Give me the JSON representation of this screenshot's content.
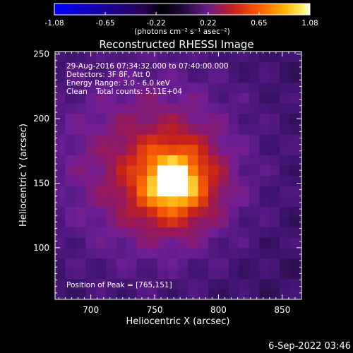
{
  "chart_data": {
    "type": "heatmap",
    "title": "Reconstructed RHESSI Image",
    "xlabel": "Heliocentric X (arcsec)",
    "ylabel": "Heliocentric Y (arcsec)",
    "xlim": [
      672,
      865
    ],
    "ylim": [
      60,
      252
    ],
    "x_ticks": [
      "700",
      "750",
      "800",
      "850"
    ],
    "y_ticks": [
      "100",
      "150",
      "200",
      "250"
    ],
    "colorbar": {
      "range": [
        -1.08,
        1.08
      ],
      "tick_labels": [
        "-1.08",
        "-0.65",
        "-0.22",
        "0.22",
        "0.65",
        "1.08"
      ],
      "units_text": "(photons cm⁻² s⁻¹ asec⁻²)",
      "colormap": [
        "#0000ff",
        "#000000",
        "#3a0a7a",
        "#6e1f94",
        "#a01e5a",
        "#d22a1a",
        "#ff6a00",
        "#ffb300",
        "#ffee55",
        "#ffffff"
      ]
    },
    "annotations": {
      "time": "29-Aug-2016 07:34:32.000 to 07:40:00.000",
      "detectors": "Detectors: 3F 8F, Att 0",
      "energy": "Energy Range: 3.0 - 6.0 keV",
      "clean_label": "Clean",
      "counts": "Total counts: 5.11E+04",
      "peak": "Position of Peak = [765,151]"
    },
    "peak": {
      "x": 765,
      "y": 151,
      "value": 1.08
    }
  },
  "footer": {
    "date_stamp": "6-Sep-2022 03:46"
  }
}
